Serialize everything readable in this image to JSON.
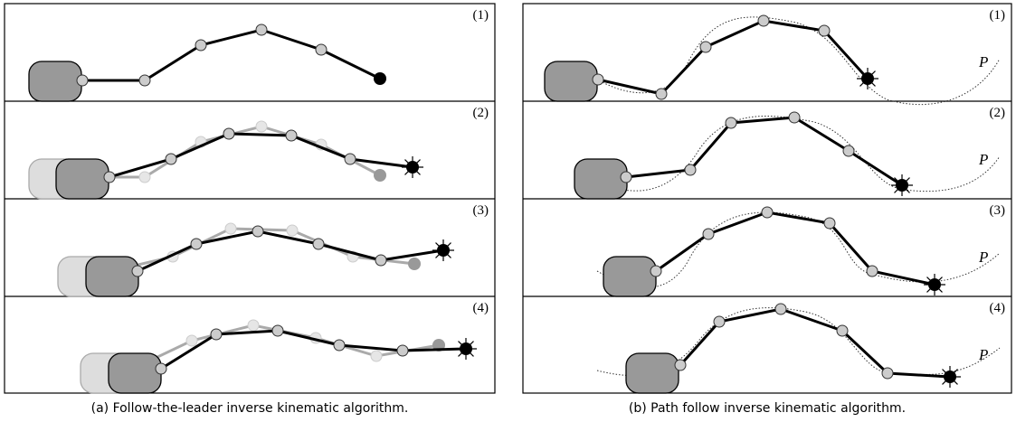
{
  "left": {
    "steps": [
      "(1)",
      "(2)",
      "(3)",
      "(4)"
    ],
    "caption": "(a) Follow-the-leader inverse kinematic algorithm."
  },
  "right": {
    "steps": [
      "(1)",
      "(2)",
      "(3)",
      "(4)"
    ],
    "path_label": "P",
    "caption": "(b) Path follow inverse kinematic algorithm."
  }
}
